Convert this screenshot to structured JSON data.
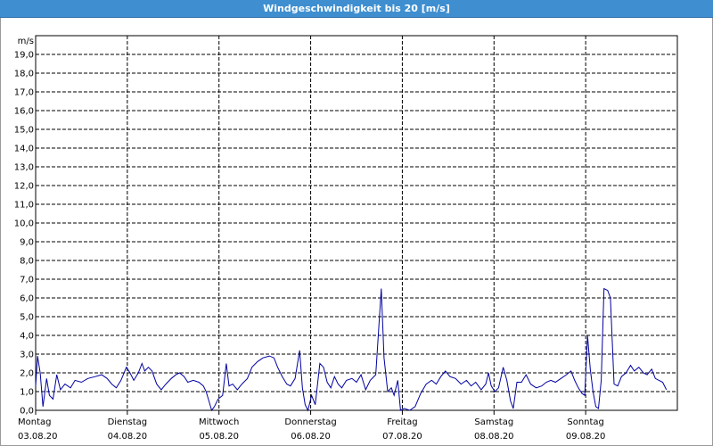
{
  "window": {
    "title": "Windgeschwindigkeit bis 20 [m/s]",
    "title_bar_color": "#3f8fd0"
  },
  "chart_data": {
    "type": "line",
    "title": "Windgeschwindigkeit bis 20 [m/s]",
    "ylabel": "m/s",
    "xlabel": "",
    "ylim": [
      0,
      20
    ],
    "yticks": [
      "0,0",
      "1,0",
      "2,0",
      "3,0",
      "4,0",
      "5,0",
      "6,0",
      "7,0",
      "8,0",
      "9,0",
      "10,0",
      "11,0",
      "12,0",
      "13,0",
      "14,0",
      "15,0",
      "16,0",
      "17,0",
      "18,0",
      "19,0"
    ],
    "grid": true,
    "legend": "none",
    "line_color": "#0000a0",
    "x_unit": "days since Montag 03.08.20 00:00",
    "xlim": [
      0,
      7
    ],
    "day_labels": [
      {
        "day": "Montag",
        "date": "03.08.20"
      },
      {
        "day": "Dienstag",
        "date": "04.08.20"
      },
      {
        "day": "Mittwoch",
        "date": "05.08.20"
      },
      {
        "day": "Donnerstag",
        "date": "06.08.20"
      },
      {
        "day": "Freitag",
        "date": "07.08.20"
      },
      {
        "day": "Samstag",
        "date": "08.08.20"
      },
      {
        "day": "Sonntag",
        "date": "09.08.20"
      }
    ],
    "series": [
      {
        "values": [
          [
            0.0,
            1.3
          ],
          [
            0.02,
            2.9
          ],
          [
            0.05,
            2.0
          ],
          [
            0.08,
            0.2
          ],
          [
            0.12,
            1.7
          ],
          [
            0.15,
            0.8
          ],
          [
            0.19,
            0.6
          ],
          [
            0.23,
            1.9
          ],
          [
            0.27,
            1.1
          ],
          [
            0.32,
            1.4
          ],
          [
            0.38,
            1.2
          ],
          [
            0.43,
            1.6
          ],
          [
            0.5,
            1.5
          ],
          [
            0.57,
            1.7
          ],
          [
            0.65,
            1.8
          ],
          [
            0.72,
            1.9
          ],
          [
            0.78,
            1.7
          ],
          [
            0.83,
            1.4
          ],
          [
            0.88,
            1.2
          ],
          [
            0.93,
            1.6
          ],
          [
            0.99,
            2.3
          ],
          [
            1.03,
            2.0
          ],
          [
            1.07,
            1.6
          ],
          [
            1.12,
            2.0
          ],
          [
            1.16,
            2.5
          ],
          [
            1.19,
            2.1
          ],
          [
            1.23,
            2.3
          ],
          [
            1.27,
            2.1
          ],
          [
            1.32,
            1.4
          ],
          [
            1.37,
            1.1
          ],
          [
            1.42,
            1.4
          ],
          [
            1.48,
            1.7
          ],
          [
            1.53,
            1.9
          ],
          [
            1.57,
            2.0
          ],
          [
            1.62,
            1.8
          ],
          [
            1.66,
            1.5
          ],
          [
            1.72,
            1.6
          ],
          [
            1.78,
            1.5
          ],
          [
            1.83,
            1.3
          ],
          [
            1.86,
            1.0
          ],
          [
            1.89,
            0.5
          ],
          [
            1.92,
            0.0
          ],
          [
            1.95,
            0.2
          ],
          [
            1.99,
            0.6
          ],
          [
            2.04,
            0.8
          ],
          [
            2.08,
            2.5
          ],
          [
            2.11,
            1.3
          ],
          [
            2.15,
            1.4
          ],
          [
            2.2,
            1.1
          ],
          [
            2.25,
            1.4
          ],
          [
            2.31,
            1.7
          ],
          [
            2.36,
            2.3
          ],
          [
            2.42,
            2.6
          ],
          [
            2.48,
            2.8
          ],
          [
            2.55,
            2.9
          ],
          [
            2.6,
            2.8
          ],
          [
            2.64,
            2.3
          ],
          [
            2.69,
            1.8
          ],
          [
            2.74,
            1.4
          ],
          [
            2.78,
            1.3
          ],
          [
            2.83,
            1.7
          ],
          [
            2.88,
            3.2
          ],
          [
            2.91,
            1.2
          ],
          [
            2.94,
            0.3
          ],
          [
            2.97,
            0.0
          ],
          [
            3.01,
            0.8
          ],
          [
            3.05,
            0.3
          ],
          [
            3.1,
            2.5
          ],
          [
            3.14,
            2.3
          ],
          [
            3.18,
            1.5
          ],
          [
            3.22,
            1.2
          ],
          [
            3.26,
            1.8
          ],
          [
            3.3,
            1.4
          ],
          [
            3.34,
            1.2
          ],
          [
            3.39,
            1.6
          ],
          [
            3.45,
            1.7
          ],
          [
            3.5,
            1.5
          ],
          [
            3.55,
            1.9
          ],
          [
            3.6,
            1.1
          ],
          [
            3.65,
            1.6
          ],
          [
            3.71,
            1.9
          ],
          [
            3.77,
            6.5
          ],
          [
            3.8,
            2.8
          ],
          [
            3.84,
            1.0
          ],
          [
            3.88,
            1.2
          ],
          [
            3.91,
            0.8
          ],
          [
            3.95,
            1.6
          ],
          [
            3.98,
            0.0
          ],
          [
            4.02,
            0.1
          ],
          [
            4.08,
            0.0
          ],
          [
            4.14,
            0.2
          ],
          [
            4.2,
            0.9
          ],
          [
            4.26,
            1.4
          ],
          [
            4.32,
            1.6
          ],
          [
            4.37,
            1.4
          ],
          [
            4.42,
            1.8
          ],
          [
            4.47,
            2.1
          ],
          [
            4.52,
            1.8
          ],
          [
            4.58,
            1.7
          ],
          [
            4.64,
            1.4
          ],
          [
            4.7,
            1.6
          ],
          [
            4.75,
            1.3
          ],
          [
            4.8,
            1.5
          ],
          [
            4.86,
            1.1
          ],
          [
            4.91,
            1.4
          ],
          [
            4.94,
            2.0
          ],
          [
            4.97,
            1.3
          ],
          [
            5.01,
            1.0
          ],
          [
            5.05,
            1.2
          ],
          [
            5.1,
            2.3
          ],
          [
            5.14,
            1.6
          ],
          [
            5.18,
            0.5
          ],
          [
            5.21,
            0.1
          ],
          [
            5.25,
            1.5
          ],
          [
            5.3,
            1.5
          ],
          [
            5.35,
            1.9
          ],
          [
            5.4,
            1.4
          ],
          [
            5.46,
            1.2
          ],
          [
            5.52,
            1.3
          ],
          [
            5.57,
            1.5
          ],
          [
            5.62,
            1.6
          ],
          [
            5.67,
            1.5
          ],
          [
            5.73,
            1.7
          ],
          [
            5.79,
            1.9
          ],
          [
            5.84,
            2.1
          ],
          [
            5.88,
            1.6
          ],
          [
            5.92,
            1.2
          ],
          [
            5.96,
            0.9
          ],
          [
            5.99,
            0.8
          ],
          [
            6.02,
            4.0
          ],
          [
            6.05,
            2.2
          ],
          [
            6.08,
            1.0
          ],
          [
            6.11,
            0.2
          ],
          [
            6.14,
            0.1
          ],
          [
            6.17,
            1.6
          ],
          [
            6.2,
            6.5
          ],
          [
            6.24,
            6.4
          ],
          [
            6.27,
            6.0
          ],
          [
            6.31,
            1.4
          ],
          [
            6.35,
            1.3
          ],
          [
            6.39,
            1.8
          ],
          [
            6.44,
            2.0
          ],
          [
            6.49,
            2.4
          ],
          [
            6.53,
            2.1
          ],
          [
            6.58,
            2.3
          ],
          [
            6.63,
            2.0
          ],
          [
            6.67,
            1.9
          ],
          [
            6.72,
            2.2
          ],
          [
            6.76,
            1.7
          ],
          [
            6.8,
            1.6
          ],
          [
            6.84,
            1.5
          ],
          [
            6.88,
            1.1
          ]
        ]
      }
    ]
  }
}
